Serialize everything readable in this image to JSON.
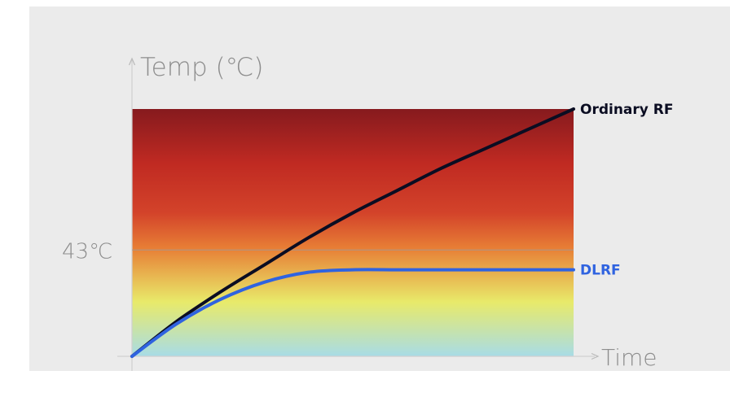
{
  "chart_data": {
    "type": "line",
    "ylabel": "Temp (℃)",
    "xlabel": "Time",
    "yticks": [
      {
        "value": 43,
        "label": "43℃"
      }
    ],
    "ylim": [
      0,
      100
    ],
    "xlim": [
      0,
      100
    ],
    "series": [
      {
        "name": "Ordinary RF",
        "color": "#0b0d22",
        "x": [
          0,
          10,
          20,
          30,
          40,
          50,
          60,
          70,
          80,
          90,
          100
        ],
        "y": [
          0,
          14,
          26,
          37,
          48,
          58,
          67,
          76,
          84,
          92,
          100
        ]
      },
      {
        "name": "DLRF",
        "color": "#2f63e0",
        "x": [
          0,
          10,
          20,
          30,
          40,
          50,
          60,
          70,
          80,
          90,
          100
        ],
        "y": [
          0,
          13,
          23,
          30,
          34,
          35,
          35,
          35,
          35,
          35,
          35
        ]
      }
    ],
    "background_gradient": [
      "#a8dce7",
      "#e8ea6a",
      "#e77d35",
      "#d3432a",
      "#c02a22",
      "#861a1e"
    ],
    "reference_line": {
      "y": 43,
      "color": "#9b9b9b"
    }
  }
}
